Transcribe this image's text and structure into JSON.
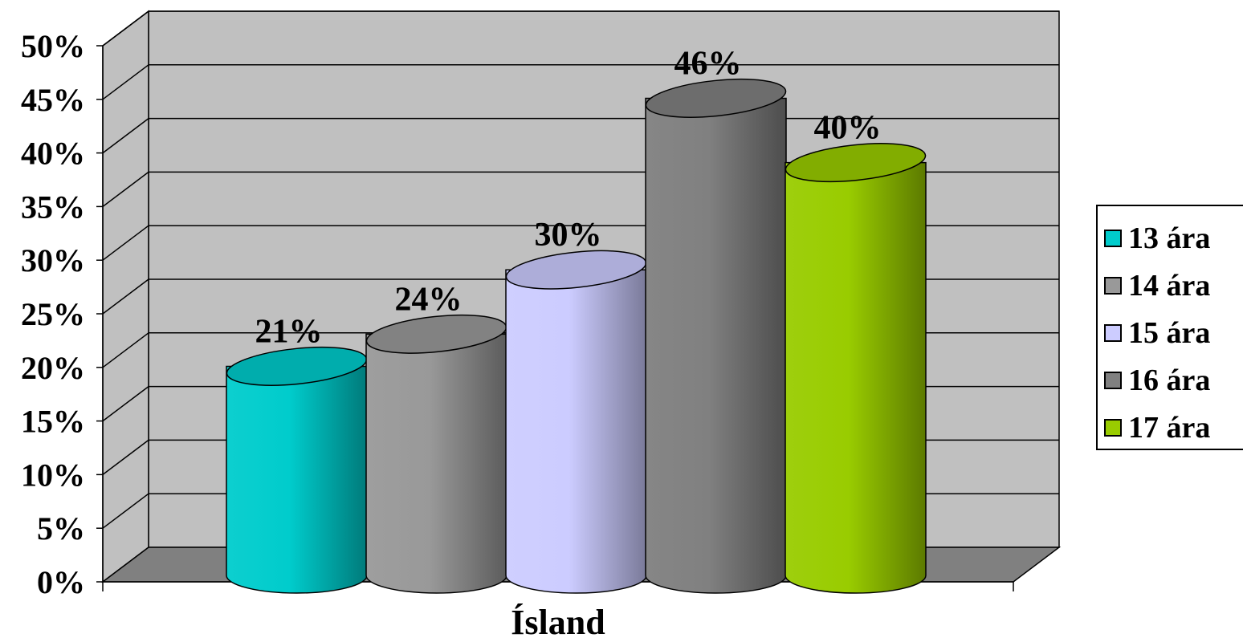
{
  "chart_data": {
    "type": "bar",
    "categories": [
      "Ísland"
    ],
    "series": [
      {
        "name": "13 ára",
        "values": [
          21
        ],
        "color": "#00CCCC"
      },
      {
        "name": "14 ára",
        "values": [
          24
        ],
        "color": "#999999"
      },
      {
        "name": "15 ára",
        "values": [
          30
        ],
        "color": "#CCCCFF"
      },
      {
        "name": "16 ára",
        "values": [
          46
        ],
        "color": "#808080"
      },
      {
        "name": "17 ára",
        "values": [
          40
        ],
        "color": "#99CC00"
      }
    ],
    "data_labels": [
      "21%",
      "24%",
      "30%",
      "46%",
      "40%"
    ],
    "y_ticks": [
      "0%",
      "5%",
      "10%",
      "15%",
      "20%",
      "25%",
      "30%",
      "35%",
      "40%",
      "45%",
      "50%"
    ],
    "ylim": [
      0,
      50
    ],
    "xlabel": "Ísland",
    "ylabel": "",
    "grid": true,
    "legend_position": "right",
    "style": "3d-cylinder",
    "wall_color": "#C0C0C0",
    "floor_color": "#808080"
  }
}
